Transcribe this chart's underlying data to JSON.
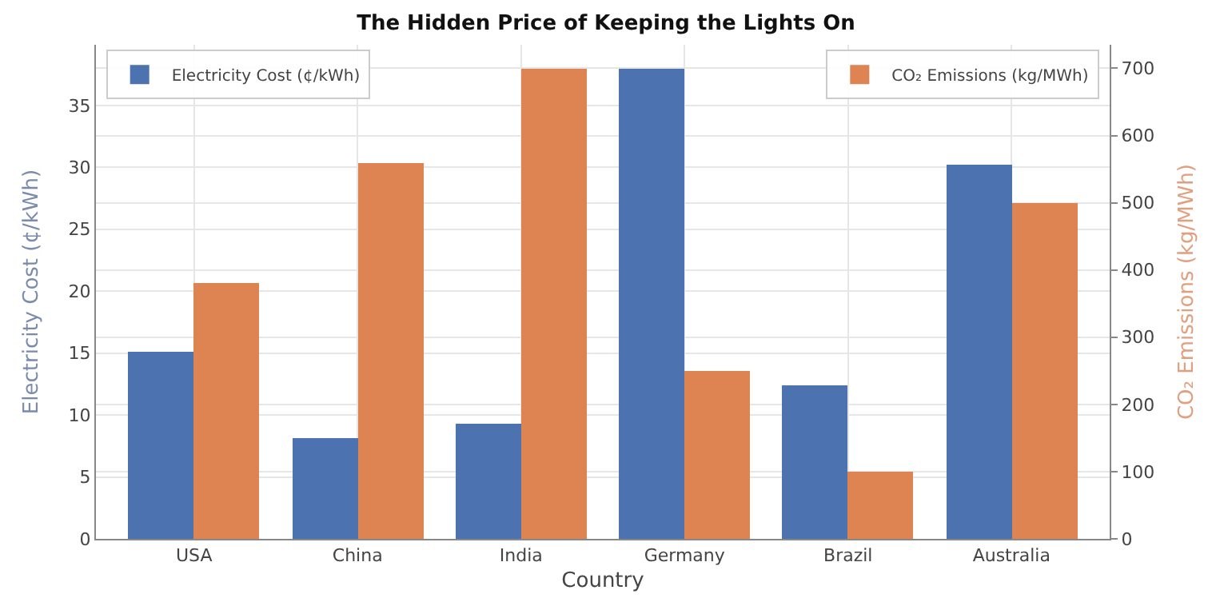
{
  "chart_data": {
    "type": "bar",
    "title": "The Hidden Price of Keeping the Lights On",
    "xlabel": "Country",
    "ylabel": "Electricity Cost (¢/kWh)",
    "y2label": "CO₂ Emissions (kg/MWh)",
    "categories": [
      "USA",
      "China",
      "India",
      "Germany",
      "Brazil",
      "Australia"
    ],
    "series": [
      {
        "name": "Electricity Cost (¢/kWh)",
        "color": "#4c72b0",
        "values": [
          15.1,
          8.2,
          9.3,
          38,
          12.4,
          30.2
        ]
      },
      {
        "name": "CO₂ Emissions (kg/MWh)",
        "color": "#dd8452",
        "axis": "y2",
        "values": [
          380,
          560,
          700,
          250,
          100,
          500
        ]
      }
    ],
    "ylim": [
      0,
      39.9
    ],
    "yticks": [
      0,
      5,
      10,
      15,
      20,
      25,
      30,
      35
    ],
    "y2lim": [
      0,
      735
    ],
    "y2ticks": [
      0,
      100,
      200,
      300,
      400,
      500,
      600,
      700
    ],
    "grid": true,
    "legend": "top"
  }
}
